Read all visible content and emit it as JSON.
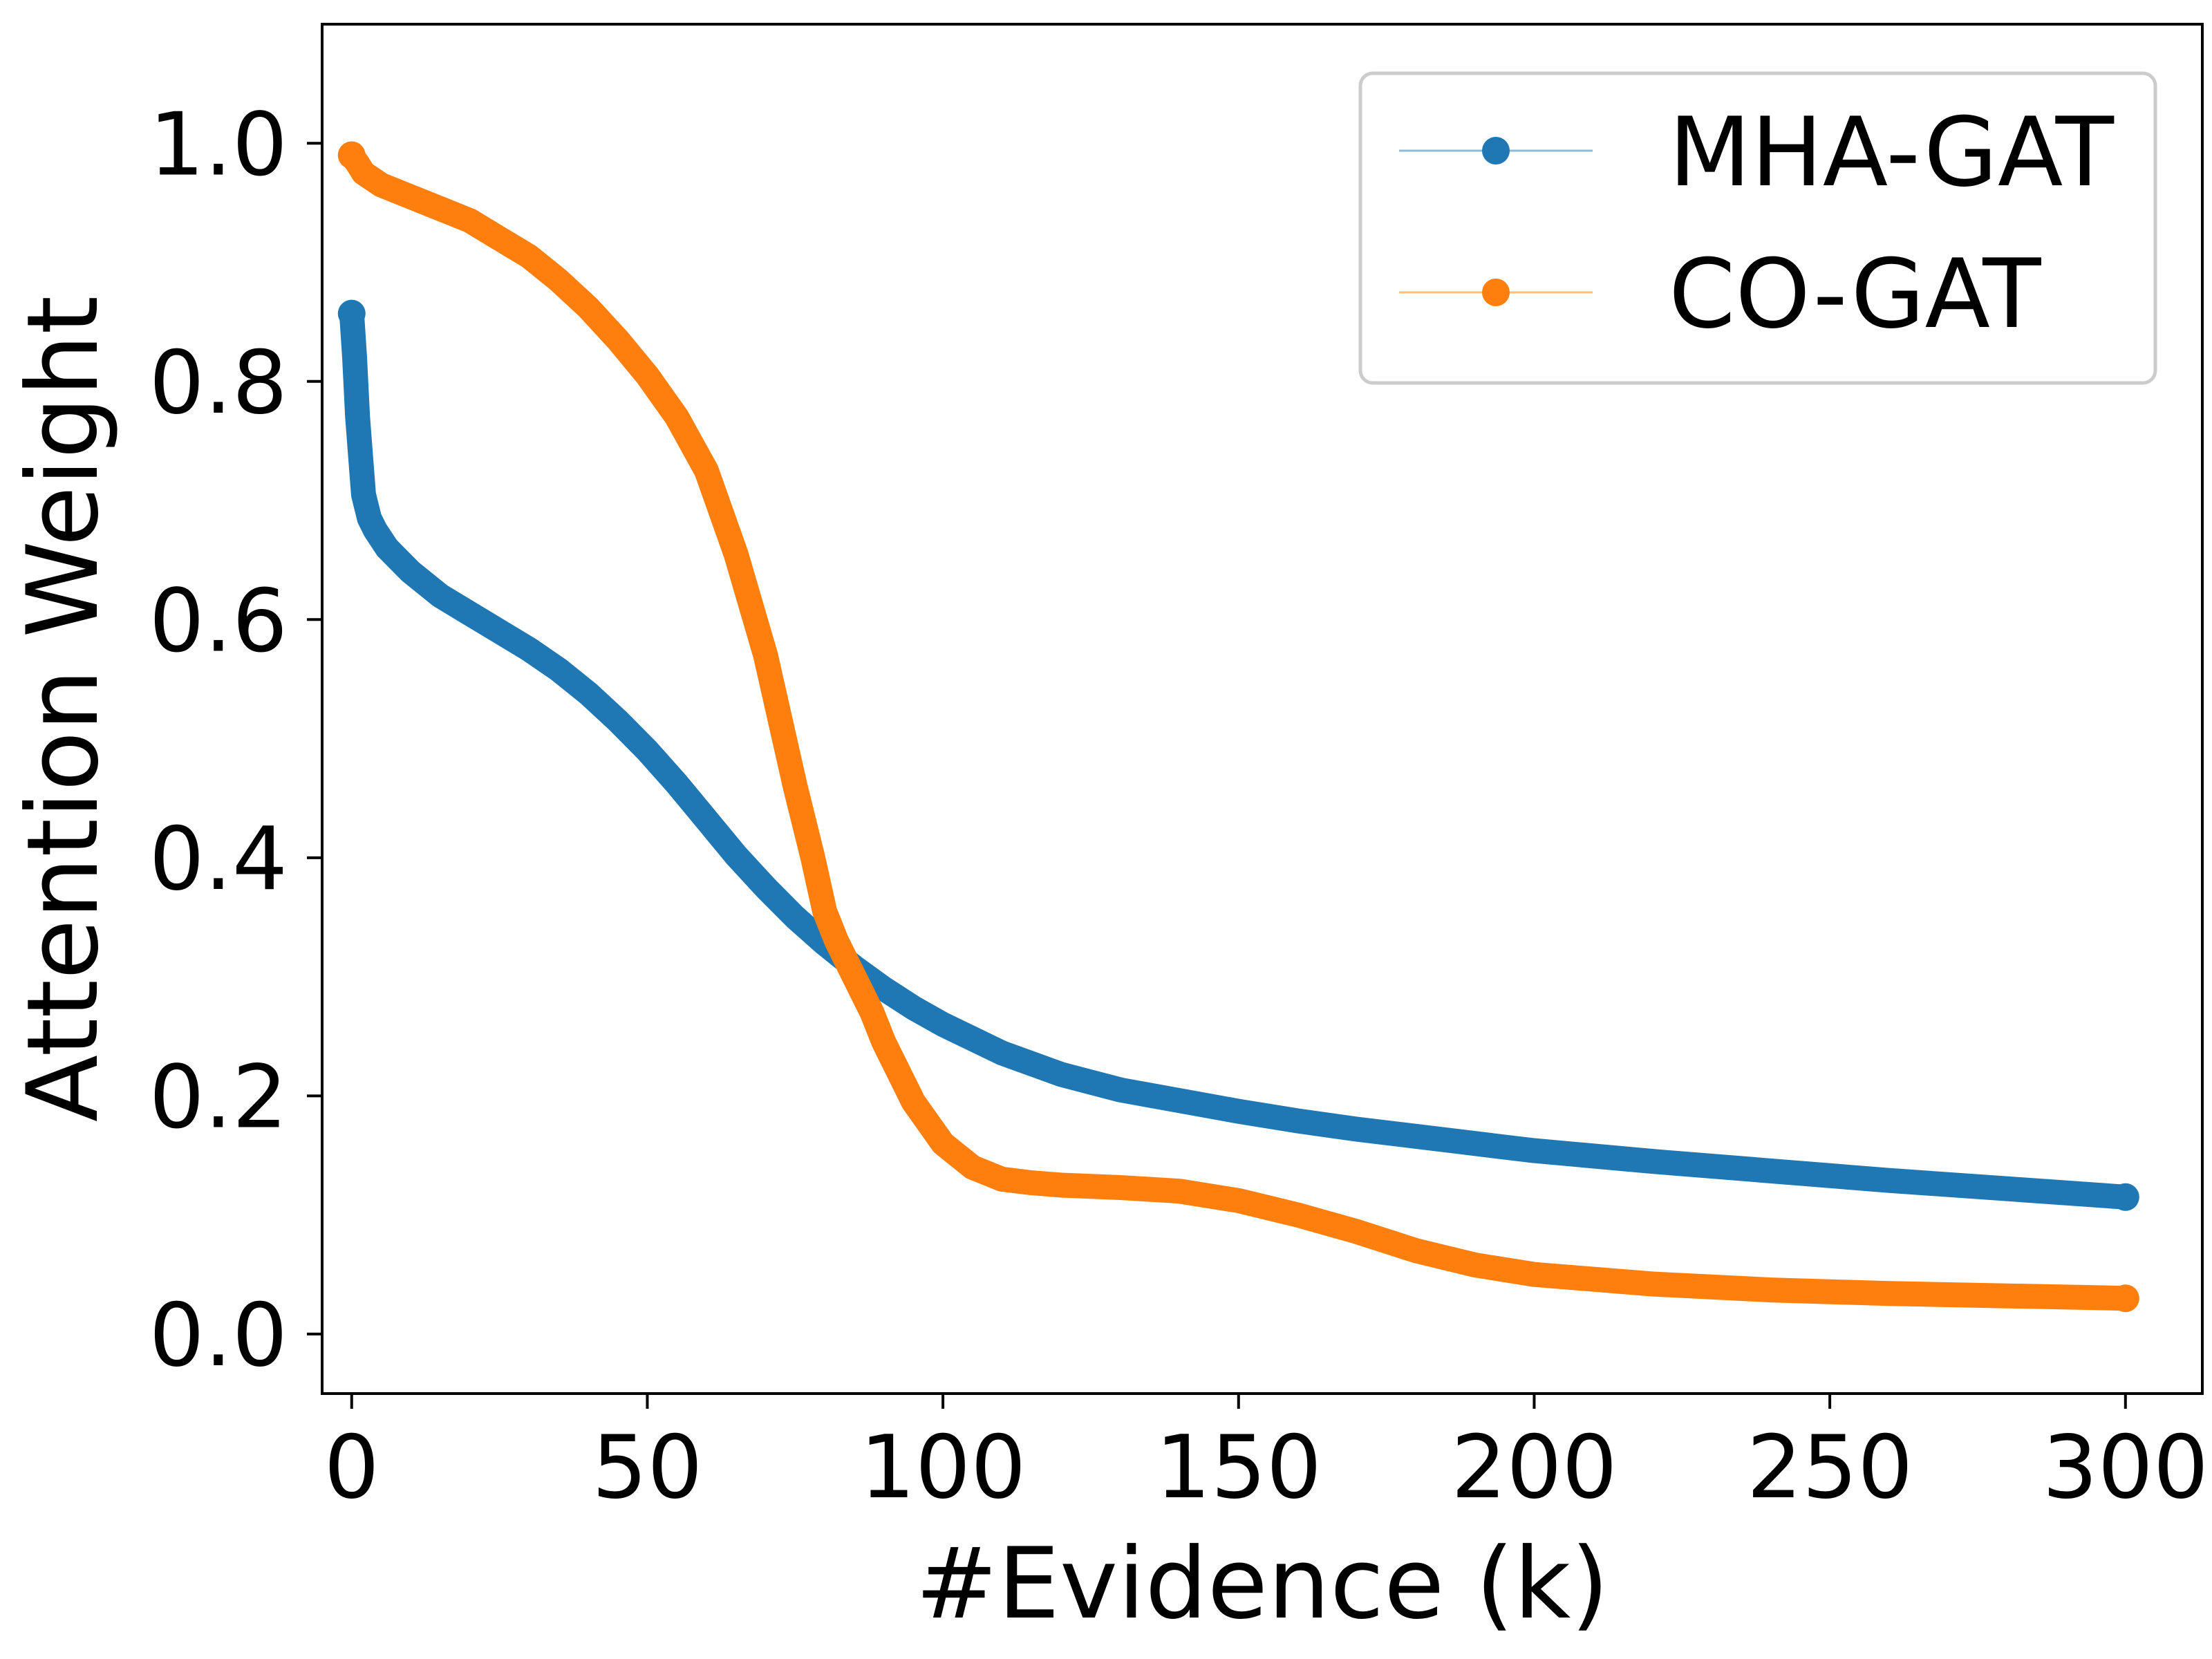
{
  "chart_data": {
    "type": "line",
    "xlabel": "#Evidence (k)",
    "ylabel": "Attention Weight",
    "xlim": [
      -5,
      313
    ],
    "ylim": [
      -0.05,
      1.1
    ],
    "xticks": [
      0,
      50,
      100,
      150,
      200,
      250,
      300
    ],
    "xtick_labels": [
      "0",
      "50",
      "100",
      "150",
      "200",
      "250",
      "300"
    ],
    "yticks": [
      0.0,
      0.2,
      0.4,
      0.6,
      0.8,
      1.0
    ],
    "ytick_labels": [
      "0.0",
      "0.2",
      "0.4",
      "0.6",
      "0.8",
      "1.0"
    ],
    "grid": false,
    "legend_position": "top-right",
    "series": [
      {
        "name": "MHA-GAT",
        "color": "#1f77b4",
        "x": [
          0,
          0.5,
          1,
          2,
          3,
          4,
          6,
          8,
          10,
          15,
          20,
          25,
          30,
          35,
          40,
          45,
          50,
          55,
          60,
          65,
          70,
          75,
          80,
          85,
          90,
          95,
          100,
          110,
          120,
          130,
          140,
          150,
          160,
          170,
          180,
          190,
          200,
          220,
          240,
          260,
          280,
          300
        ],
        "y": [
          0.857,
          0.82,
          0.77,
          0.705,
          0.685,
          0.675,
          0.66,
          0.65,
          0.64,
          0.62,
          0.605,
          0.59,
          0.575,
          0.558,
          0.538,
          0.515,
          0.49,
          0.462,
          0.432,
          0.402,
          0.375,
          0.35,
          0.328,
          0.308,
          0.29,
          0.274,
          0.26,
          0.236,
          0.218,
          0.205,
          0.196,
          0.187,
          0.179,
          0.172,
          0.166,
          0.16,
          0.154,
          0.145,
          0.137,
          0.129,
          0.122,
          0.115
        ]
      },
      {
        "name": "CO-GAT",
        "color": "#ff7f0e",
        "x": [
          0,
          1,
          2,
          5,
          10,
          15,
          20,
          25,
          30,
          35,
          40,
          45,
          50,
          55,
          60,
          65,
          70,
          75,
          78,
          80,
          82,
          85,
          88,
          90,
          92,
          95,
          100,
          105,
          110,
          115,
          120,
          130,
          140,
          150,
          160,
          170,
          180,
          190,
          200,
          220,
          240,
          260,
          280,
          300
        ],
        "y": [
          0.99,
          0.983,
          0.975,
          0.965,
          0.955,
          0.945,
          0.935,
          0.92,
          0.905,
          0.885,
          0.862,
          0.835,
          0.805,
          0.77,
          0.725,
          0.655,
          0.57,
          0.46,
          0.4,
          0.355,
          0.33,
          0.3,
          0.27,
          0.245,
          0.225,
          0.195,
          0.16,
          0.14,
          0.13,
          0.127,
          0.125,
          0.123,
          0.12,
          0.112,
          0.1,
          0.086,
          0.07,
          0.058,
          0.05,
          0.042,
          0.037,
          0.034,
          0.032,
          0.03
        ]
      }
    ]
  }
}
